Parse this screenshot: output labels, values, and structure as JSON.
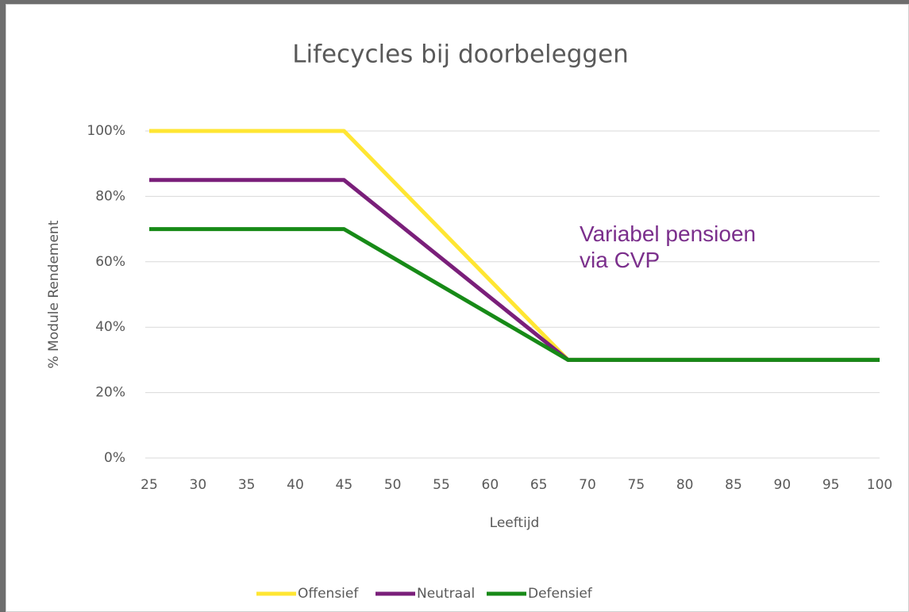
{
  "chart_data": {
    "type": "line",
    "title": "Lifecycles bij doorbeleggen",
    "xlabel": "Leeftijd",
    "ylabel": "% Module Rendement",
    "annotation": "Variabel pensioen via CVP",
    "x": [
      25,
      45,
      68,
      100
    ],
    "series": [
      {
        "name": "Offensief",
        "color": "#ffe633",
        "values": [
          100,
          100,
          30,
          30
        ]
      },
      {
        "name": "Neutraal",
        "color": "#7a1f7a",
        "values": [
          85,
          85,
          30,
          30
        ]
      },
      {
        "name": "Defensief",
        "color": "#178a17",
        "values": [
          70,
          70,
          30,
          30
        ]
      }
    ],
    "xlim": [
      25,
      100
    ],
    "xticks": [
      25,
      30,
      35,
      40,
      45,
      50,
      55,
      60,
      65,
      70,
      75,
      80,
      85,
      90,
      95,
      100
    ],
    "ylim": [
      0,
      100
    ],
    "yticks": [
      {
        "value": 0,
        "label": "0%"
      },
      {
        "value": 20,
        "label": "20%"
      },
      {
        "value": 40,
        "label": "40%"
      },
      {
        "value": 60,
        "label": "60%"
      },
      {
        "value": 80,
        "label": "80%"
      },
      {
        "value": 100,
        "label": "100%"
      }
    ],
    "grid": true,
    "legend": "bottom"
  }
}
